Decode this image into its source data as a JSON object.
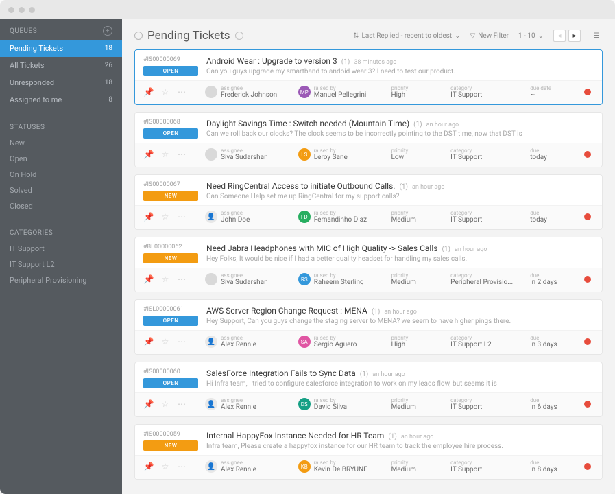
{
  "sidebar": {
    "queues": {
      "title": "QUEUES",
      "items": [
        {
          "label": "Pending Tickets",
          "count": "18",
          "active": true
        },
        {
          "label": "All Tickets",
          "count": "26"
        },
        {
          "label": "Unresponded",
          "count": "18"
        },
        {
          "label": "Assigned to me",
          "count": "8"
        }
      ]
    },
    "statuses": {
      "title": "STATUSES",
      "items": [
        {
          "label": "New"
        },
        {
          "label": "Open"
        },
        {
          "label": "On Hold"
        },
        {
          "label": "Solved"
        },
        {
          "label": "Closed"
        }
      ]
    },
    "categories": {
      "title": "CATEGORIES",
      "items": [
        {
          "label": "IT Support"
        },
        {
          "label": "IT Support L2"
        },
        {
          "label": "Peripheral Provisioning"
        }
      ]
    }
  },
  "header": {
    "title": "Pending Tickets",
    "sort_label": "Last Replied - recent to oldest",
    "filter_label": "New Filter",
    "range": "1 - 10"
  },
  "tickets": [
    {
      "id": "#IS00000069",
      "badge": "OPEN",
      "badge_class": "badge-open",
      "selected": true,
      "subject": "Android Wear : Upgrade to version 3",
      "count": "(1)",
      "time": "38 minutes ago",
      "preview": "Can you guys upgrade my smartband to andoid wear 3? I need to test our product.",
      "assignee": "Frederick Johnson",
      "a_av": "av-gray",
      "a_in": "",
      "raised": "Manuel Pellegrini",
      "r_av": "av-purple",
      "r_in": "MP",
      "priority": "High",
      "category": "IT Support",
      "due_label": "due date",
      "due": "~"
    },
    {
      "id": "#IS00000068",
      "badge": "OPEN",
      "badge_class": "badge-open",
      "subject": "Daylight Savings Time : Switch needed (Mountain Time)",
      "count": "(1)",
      "time": "an hour ago",
      "preview": "Can we roll back our clocks? The clock seems to be incorrectly pointing to the DST time, now that DST is",
      "assignee": "Siva Sudarshan",
      "a_av": "av-gray",
      "a_in": "",
      "raised": "Leroy Sane",
      "r_av": "av-orange",
      "r_in": "LS",
      "priority": "Low",
      "category": "IT Support",
      "due_label": "due",
      "due": "today"
    },
    {
      "id": "#IS00000067",
      "badge": "NEW",
      "badge_class": "badge-new",
      "subject": "Need RingCentral Access to initiate Outbound Calls.",
      "count": "(1)",
      "time": "an hour ago",
      "preview": "Can Someone Help set me up RingCentral for my support calls?",
      "assignee": "John Doe",
      "a_av": "av-img",
      "a_in": "👤",
      "raised": "Fernandinho Diaz",
      "r_av": "av-green",
      "r_in": "FD",
      "priority": "Medium",
      "category": "IT Support",
      "due_label": "due",
      "due": "today"
    },
    {
      "id": "#BL00000062",
      "badge": "NEW",
      "badge_class": "badge-new",
      "subject": "Need Jabra Headphones with MIC of High Quality -> Sales Calls",
      "count": "(1)",
      "time": "an hour ago",
      "preview": "Hey Folks, It would be nice if I had a better quality headset for handling my sales calls.",
      "assignee": "Siva Sudarshan",
      "a_av": "av-gray",
      "a_in": "",
      "raised": "Raheem Sterling",
      "r_av": "av-blue",
      "r_in": "RS",
      "priority": "Medium",
      "category": "Peripheral Provisio...",
      "due_label": "due",
      "due": "in 2 days"
    },
    {
      "id": "#ISL00000061",
      "badge": "OPEN",
      "badge_class": "badge-open",
      "subject": "AWS Server Region Change Request : MENA",
      "count": "(1)",
      "time": "an hour ago",
      "preview": "Hey Support, Can you guys change the staging server to MENA? we seem to have higher pings there.",
      "assignee": "Alex Rennie",
      "a_av": "av-img",
      "a_in": "👤",
      "raised": "Sergio Aguero",
      "r_av": "av-pink",
      "r_in": "SA",
      "priority": "High",
      "category": "IT Support L2",
      "due_label": "due",
      "due": "in 3 days"
    },
    {
      "id": "#IS00000060",
      "badge": "OPEN",
      "badge_class": "badge-open",
      "subject": "SalesForce Integration Fails to Sync Data",
      "count": "(1)",
      "time": "an hour ago",
      "preview": "Hi Infra team, I tried to configure salesforce integration to work on my leads flow, but seems it is",
      "assignee": "Alex Rennie",
      "a_av": "av-img",
      "a_in": "👤",
      "raised": "David Silva",
      "r_av": "av-teal",
      "r_in": "DS",
      "priority": "Medium",
      "category": "IT Support",
      "due_label": "due",
      "due": "in 6 days"
    },
    {
      "id": "#IS00000059",
      "badge": "NEW",
      "badge_class": "badge-new",
      "subject": "Internal HappyFox Instance Needed for HR Team",
      "count": "(1)",
      "time": "an hour ago",
      "preview": "Infra team, Please create a happyfox instance for our HR team to track the employee hire process.",
      "assignee": "Alex Rennie",
      "a_av": "av-img",
      "a_in": "👤",
      "raised": "Kevin De BRYUNE",
      "r_av": "av-orange",
      "r_in": "KB",
      "priority": "Medium",
      "category": "IT Support",
      "due_label": "due",
      "due": "in 8 days"
    }
  ],
  "meta_labels": {
    "assignee": "assignee",
    "raised": "raised by",
    "priority": "priority",
    "category": "category"
  }
}
